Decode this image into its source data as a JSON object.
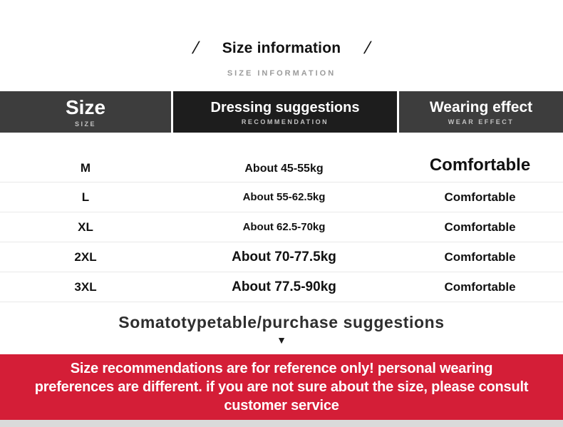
{
  "title": {
    "slash_left": "/",
    "main": "Size information",
    "slash_right": "/",
    "sub": "SIZE INFORMATION"
  },
  "table": {
    "columns": [
      {
        "label": "Size",
        "sublabel": "SIZE"
      },
      {
        "label": "Dressing suggestions",
        "sublabel": "RECOMMENDATION"
      },
      {
        "label": "Wearing effect",
        "sublabel": "WEAR EFFECT"
      }
    ],
    "rows": [
      {
        "size": "M",
        "suggestion": "About 45-55kg",
        "effect": "Comfortable"
      },
      {
        "size": "L",
        "suggestion": "About 55-62.5kg",
        "effect": "Comfortable"
      },
      {
        "size": "XL",
        "suggestion": "About 62.5-70kg",
        "effect": "Comfortable"
      },
      {
        "size": "2XL",
        "suggestion": "About 70-77.5kg",
        "effect": "Comfortable"
      },
      {
        "size": "3XL",
        "suggestion": "About 77.5-90kg",
        "effect": "Comfortable"
      }
    ]
  },
  "purchase_heading": {
    "text": "Somatotypetable/purchase suggestions",
    "arrow": "▼"
  },
  "notice": {
    "text": "Size recommendations are for reference only! personal wearing preferences are different. if you are not sure about the size, please consult customer service",
    "bg_color": "#d41e37",
    "text_color": "#ffffff"
  },
  "colors": {
    "header_cell_dark_gray": "#3d3d3d",
    "header_cell_black": "#1d1d1d",
    "row_separator": "#e9e9e9",
    "subtitle_gray": "#9b9b9b",
    "bottom_strip": "#dadada"
  }
}
